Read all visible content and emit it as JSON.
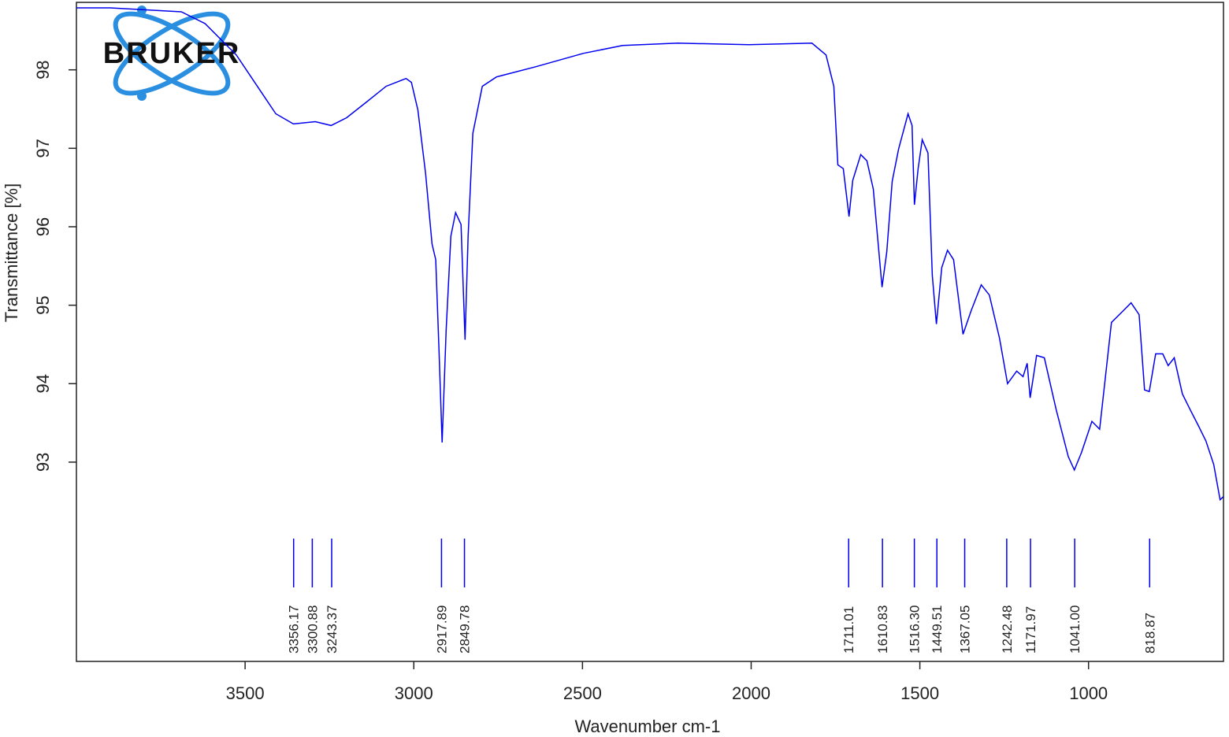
{
  "chart_data": {
    "type": "line",
    "logo": "BRUKER",
    "xlabel": "Wavenumber cm-1",
    "ylabel": "Transmittance [%]",
    "xlim": [
      4000,
      600
    ],
    "ylim": [
      90.46,
      98.86
    ],
    "xticks": [
      3500,
      3000,
      2500,
      2000,
      1500,
      1000
    ],
    "yticks": [
      93,
      94,
      95,
      96,
      97,
      98
    ],
    "series": [
      {
        "color": "#0000ee",
        "x": [
          4000,
          3900,
          3689,
          3619,
          3526,
          3456,
          3409,
          3357,
          3292,
          3245,
          3199,
          3140,
          3082,
          3023,
          3007,
          2988,
          2965,
          2946,
          2935,
          2925,
          2916,
          2904,
          2890,
          2876,
          2860,
          2848,
          2839,
          2825,
          2797,
          2755,
          2638,
          2498,
          2381,
          2217,
          2007,
          1820,
          1778,
          1755,
          1743,
          1727,
          1710,
          1699,
          1675,
          1657,
          1638,
          1612,
          1598,
          1582,
          1563,
          1535,
          1523,
          1516,
          1505,
          1493,
          1476,
          1463,
          1451,
          1435,
          1418,
          1400,
          1372,
          1348,
          1318,
          1294,
          1264,
          1240,
          1213,
          1194,
          1182,
          1173,
          1154,
          1131,
          1096,
          1060,
          1042,
          1021,
          990,
          967,
          932,
          897,
          874,
          850,
          834,
          820,
          801,
          780,
          764,
          746,
          722,
          699,
          675,
          652,
          629,
          610,
          600
        ],
        "values": [
          98.79,
          98.79,
          98.74,
          98.59,
          98.19,
          97.74,
          97.44,
          97.31,
          97.34,
          97.29,
          97.39,
          97.59,
          97.79,
          97.89,
          97.84,
          97.49,
          96.68,
          95.78,
          95.58,
          94.38,
          93.25,
          94.68,
          95.88,
          96.18,
          96.03,
          94.56,
          95.88,
          97.19,
          97.79,
          97.91,
          98.04,
          98.21,
          98.31,
          98.34,
          98.32,
          98.34,
          98.19,
          97.79,
          96.79,
          96.74,
          96.13,
          96.59,
          96.92,
          96.84,
          96.48,
          95.23,
          95.68,
          96.58,
          96.99,
          97.44,
          97.29,
          96.28,
          96.74,
          97.11,
          96.94,
          95.38,
          94.76,
          95.48,
          95.7,
          95.58,
          94.63,
          94.93,
          95.26,
          95.13,
          94.58,
          94.0,
          94.16,
          94.09,
          94.26,
          93.82,
          94.36,
          94.33,
          93.67,
          93.07,
          92.9,
          93.12,
          93.52,
          93.42,
          94.78,
          94.93,
          95.03,
          94.88,
          93.92,
          93.9,
          94.38,
          94.38,
          94.23,
          94.33,
          93.87,
          93.67,
          93.47,
          93.27,
          92.97,
          92.52,
          92.56
        ]
      }
    ],
    "peaks": {
      "x": [
        3356.17,
        3300.88,
        3243.37,
        2917.89,
        2849.78,
        1711.01,
        1610.83,
        1516.3,
        1449.51,
        1367.05,
        1242.48,
        1171.97,
        1041.0,
        818.87
      ],
      "labels": [
        "3356.17",
        "3300.88",
        "3243.37",
        "2917.89",
        "2849.78",
        "1711.01",
        "1610.83",
        "1516.30",
        "1449.51",
        "1367.05",
        "1242.48",
        "1171.97",
        "1041.00",
        "818.87"
      ]
    }
  }
}
